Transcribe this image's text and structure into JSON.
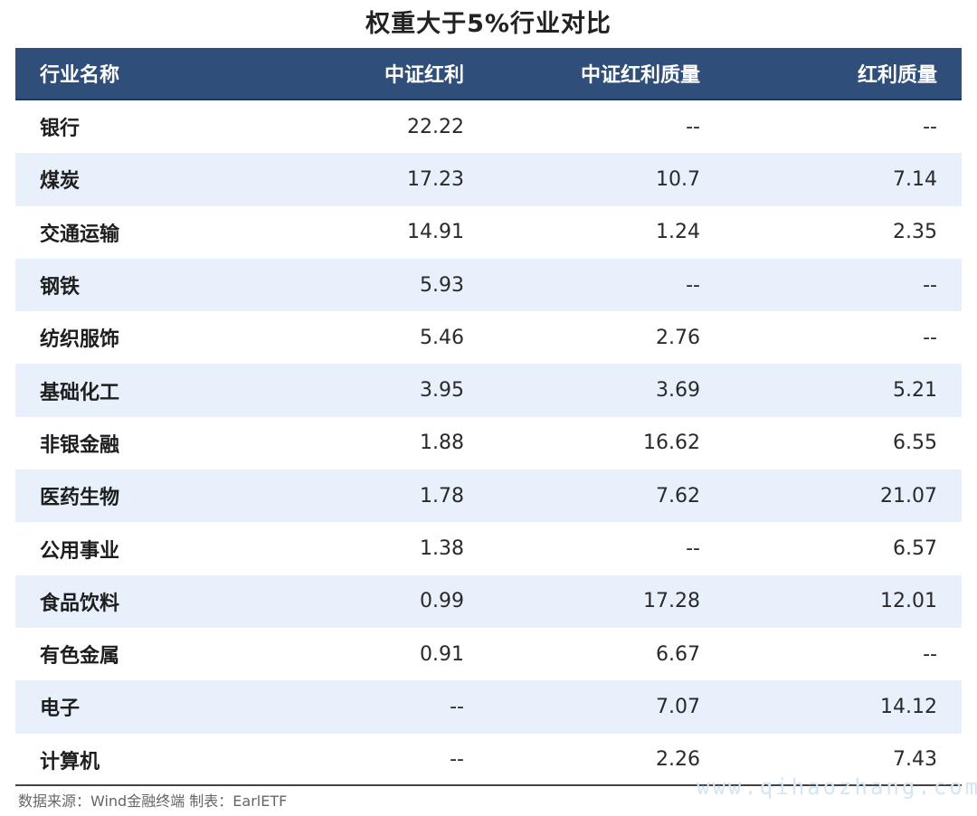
{
  "title": "权重大于5%行业对比",
  "headers": [
    "行业名称",
    "中证红利",
    "中证红利质量",
    "红利质量"
  ],
  "rows": [
    [
      "银行",
      "22.22",
      "--",
      "--"
    ],
    [
      "煤炭",
      "17.23",
      "10.7",
      "7.14"
    ],
    [
      "交通运输",
      "14.91",
      "1.24",
      "2.35"
    ],
    [
      "钢铁",
      "5.93",
      "--",
      "--"
    ],
    [
      "纺织服饰",
      "5.46",
      "2.76",
      "--"
    ],
    [
      "基础化工",
      "3.95",
      "3.69",
      "5.21"
    ],
    [
      "非银金融",
      "1.88",
      "16.62",
      "6.55"
    ],
    [
      "医药生物",
      "1.78",
      "7.62",
      "21.07"
    ],
    [
      "公用事业",
      "1.38",
      "--",
      "6.57"
    ],
    [
      "食品饮料",
      "0.99",
      "17.28",
      "12.01"
    ],
    [
      "有色金属",
      "0.91",
      "6.67",
      "--"
    ],
    [
      "电子",
      "--",
      "7.07",
      "14.12"
    ],
    [
      "计算机",
      "--",
      "2.26",
      "7.43"
    ]
  ],
  "source": "数据来源：Wind金融终端 制表：EarlETF",
  "watermark": "www.qihaozhang.com",
  "colors": {
    "header_bg": "#2f4f7a",
    "alt_row_bg": "#e8f1fb",
    "header_text": "#ffffff"
  }
}
